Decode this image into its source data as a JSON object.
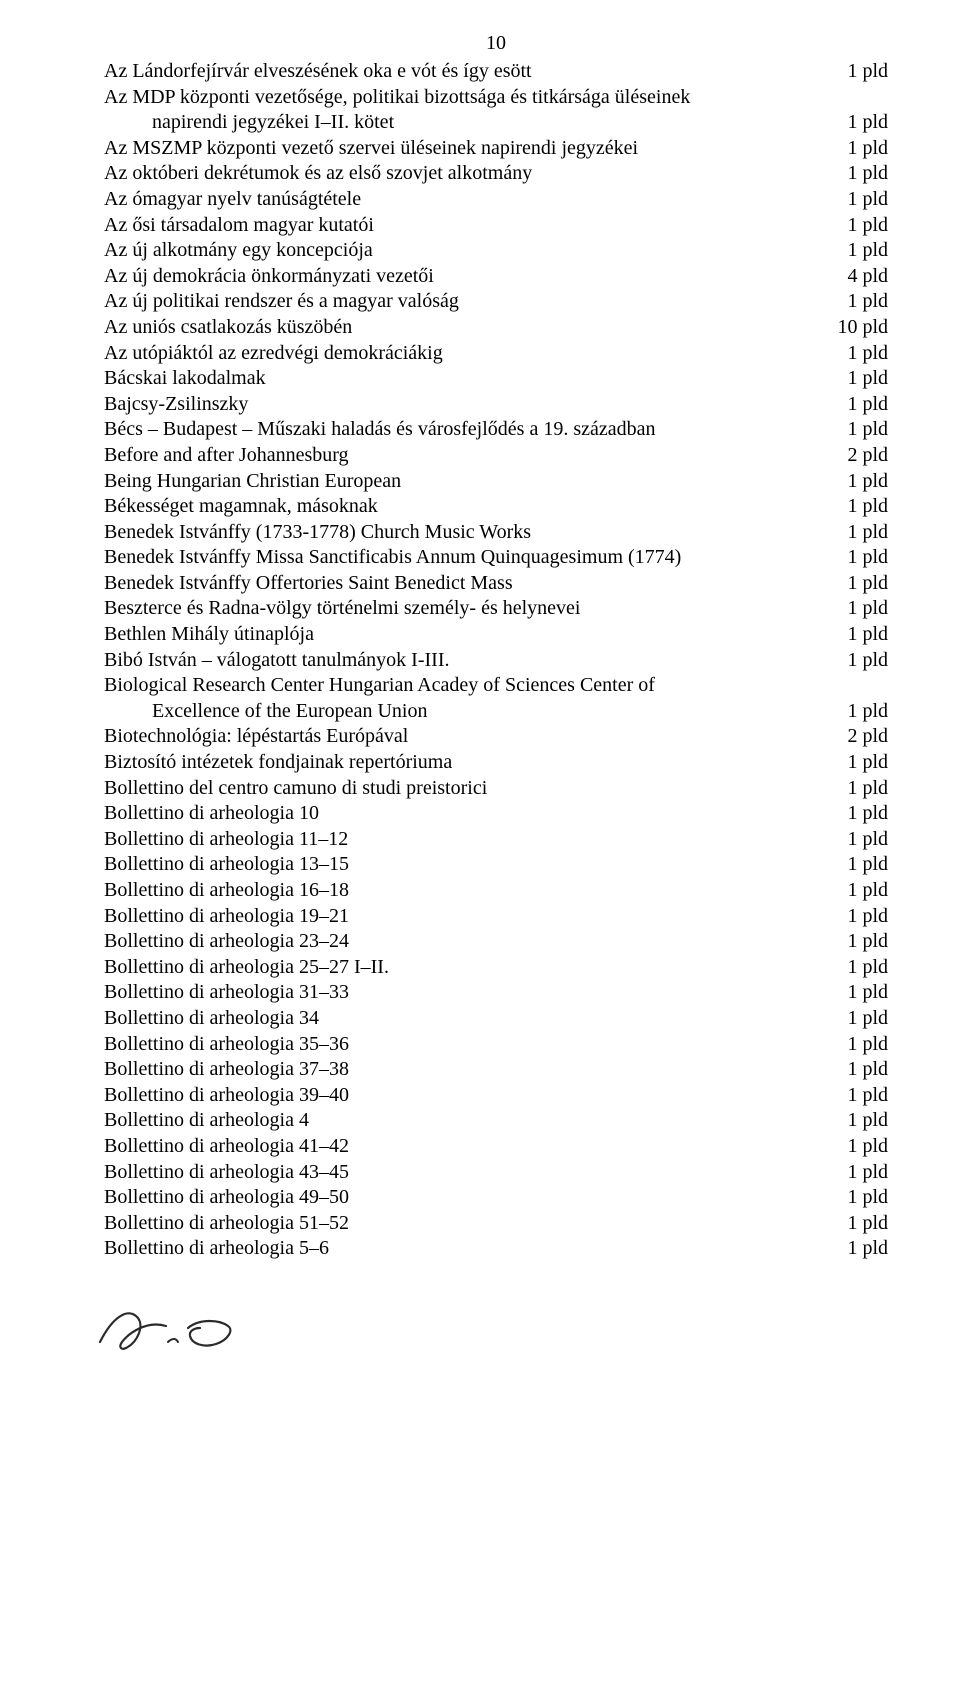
{
  "page_number": "10",
  "qty_suffix": "pld",
  "entries": [
    {
      "title": "Az Lándorfejírvár elveszésének oka e vót és így esött",
      "qty": "1"
    },
    {
      "title": "Az MDP központi vezetősége, politikai bizottsága és titkársága üléseinek",
      "qty": "",
      "no_qty": true
    },
    {
      "title": "napirendi jegyzékei I–II. kötet",
      "qty": "1",
      "indent": true
    },
    {
      "title": "Az MSZMP központi vezető szervei üléseinek napirendi jegyzékei",
      "qty": "1"
    },
    {
      "title": "Az októberi dekrétumok és az első szovjet alkotmány",
      "qty": "1"
    },
    {
      "title": "Az ómagyar nyelv tanúságtétele",
      "qty": "1"
    },
    {
      "title": "Az ősi társadalom magyar kutatói",
      "qty": "1"
    },
    {
      "title": "Az új alkotmány egy koncepciója",
      "qty": "1"
    },
    {
      "title": "Az új demokrácia önkormányzati vezetői",
      "qty": "4"
    },
    {
      "title": "Az új politikai rendszer és a magyar valóság",
      "qty": "1"
    },
    {
      "title": "Az uniós csatlakozás küszöbén",
      "qty": "10"
    },
    {
      "title": "Az utópiáktól az ezredvégi demokráciákig",
      "qty": "1"
    },
    {
      "title": "Bácskai lakodalmak",
      "qty": "1"
    },
    {
      "title": "Bajcsy-Zsilinszky",
      "qty": "1"
    },
    {
      "title": "Bécs – Budapest – Műszaki haladás és városfejlődés a 19. században",
      "qty": "1"
    },
    {
      "title": "Before and after Johannesburg",
      "qty": "2"
    },
    {
      "title": "Being Hungarian Christian European",
      "qty": "1"
    },
    {
      "title": "Békességet magamnak, másoknak",
      "qty": "1"
    },
    {
      "title": "Benedek Istvánffy (1733-1778) Church Music Works",
      "qty": "1"
    },
    {
      "title": "Benedek Istvánffy Missa Sanctificabis Annum Quinquagesimum (1774)",
      "qty": "1"
    },
    {
      "title": "Benedek Istvánffy Offertories Saint Benedict Mass",
      "qty": "1"
    },
    {
      "title": "Beszterce és Radna-völgy történelmi személy- és helynevei",
      "qty": "1"
    },
    {
      "title": "Bethlen Mihály útinaplója",
      "qty": "1"
    },
    {
      "title": "Bibó István – válogatott tanulmányok I-III.",
      "qty": "1"
    },
    {
      "title": "Biological Research Center Hungarian Acadey of Sciences Center of",
      "qty": "",
      "no_qty": true
    },
    {
      "title": "Excellence of the European Union",
      "qty": "1",
      "indent": true
    },
    {
      "title": "Biotechnológia: lépéstartás Európával",
      "qty": "2"
    },
    {
      "title": "Biztosító intézetek fondjainak repertóriuma",
      "qty": "1"
    },
    {
      "title": "Bollettino del centro camuno di studi preistorici",
      "qty": "1"
    },
    {
      "title": "Bollettino di arheologia 10",
      "qty": "1"
    },
    {
      "title": "Bollettino di arheologia 11–12",
      "qty": "1"
    },
    {
      "title": "Bollettino di arheologia 13–15",
      "qty": "1"
    },
    {
      "title": "Bollettino di arheologia 16–18",
      "qty": "1"
    },
    {
      "title": "Bollettino di arheologia 19–21",
      "qty": "1"
    },
    {
      "title": "Bollettino di arheologia 23–24",
      "qty": "1"
    },
    {
      "title": "Bollettino di arheologia 25–27 I–II.",
      "qty": "1"
    },
    {
      "title": "Bollettino di arheologia 31–33",
      "qty": "1"
    },
    {
      "title": "Bollettino di arheologia 34",
      "qty": "1"
    },
    {
      "title": "Bollettino di arheologia 35–36",
      "qty": "1"
    },
    {
      "title": "Bollettino di arheologia 37–38",
      "qty": "1"
    },
    {
      "title": "Bollettino di arheologia 39–40",
      "qty": "1"
    },
    {
      "title": "Bollettino di arheologia 4",
      "qty": "1"
    },
    {
      "title": "Bollettino di arheologia 41–42",
      "qty": "1"
    },
    {
      "title": "Bollettino di arheologia 43–45",
      "qty": "1"
    },
    {
      "title": "Bollettino di arheologia 49–50",
      "qty": "1"
    },
    {
      "title": "Bollettino di arheologia 51–52",
      "qty": "1"
    },
    {
      "title": "Bollettino di arheologia 5–6",
      "qty": "1"
    }
  ],
  "colors": {
    "background": "#ffffff",
    "text": "#000000",
    "signature": "#2a2a2a"
  },
  "typography": {
    "font_family": "Times New Roman",
    "font_size_pt": 15,
    "line_height": 1.28
  }
}
